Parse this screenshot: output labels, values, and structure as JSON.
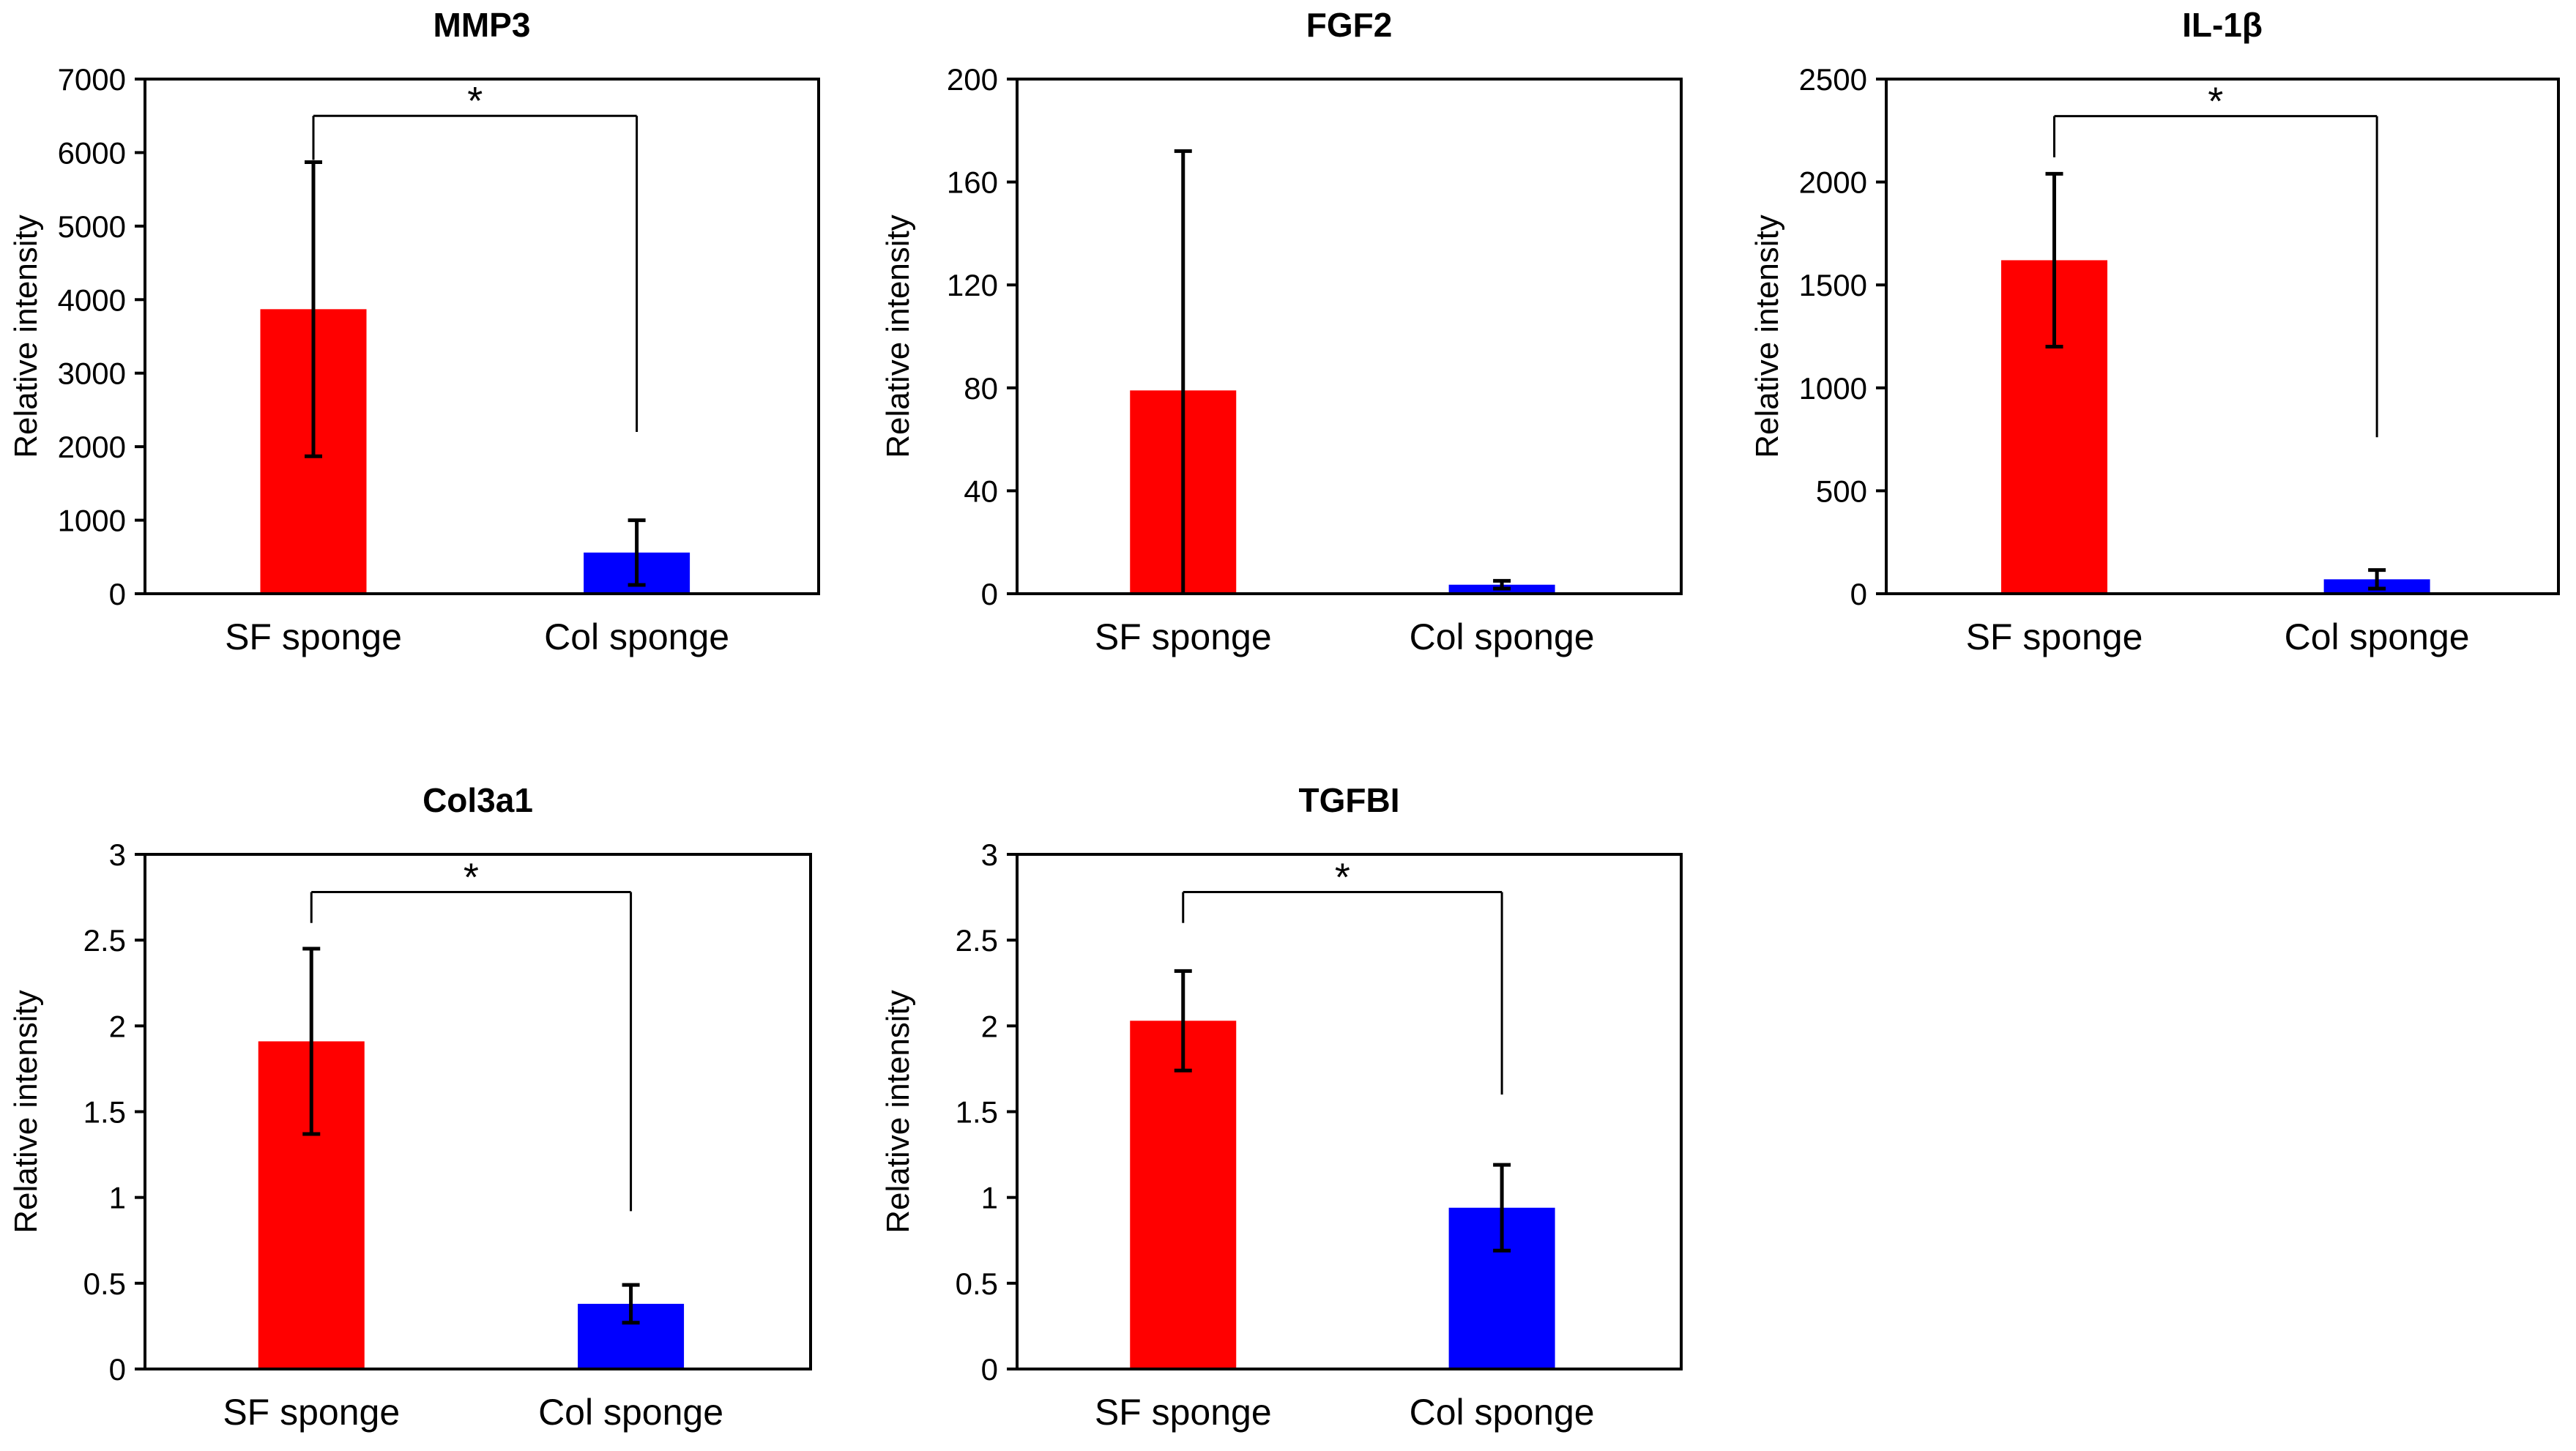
{
  "chart_data": [
    {
      "type": "bar",
      "title": "MMP3",
      "categories": [
        "SF sponge",
        "Col sponge"
      ],
      "values": [
        3870,
        560
      ],
      "errors": [
        2000,
        440
      ],
      "ylabel": "Relative intensity",
      "xlabel": "",
      "ylim": [
        0,
        7000
      ],
      "yticks": [
        0,
        1000,
        2000,
        3000,
        4000,
        5000,
        6000,
        7000
      ],
      "ytick_labels": [
        "0",
        "1000",
        "2000",
        "3000",
        "4000",
        "5000",
        "6000",
        "7000"
      ],
      "colors": [
        "#ff0000",
        "#0000ff"
      ],
      "significance": {
        "label": "*",
        "bracket_value": 6500,
        "left_drop_value": 5900,
        "right_drop_value": 2200
      }
    },
    {
      "type": "bar",
      "title": "FGF2",
      "categories": [
        "SF sponge",
        "Col sponge"
      ],
      "values": [
        79,
        3.5
      ],
      "errors": [
        93,
        1.5
      ],
      "ylabel": "Relative intensity",
      "xlabel": "",
      "ylim": [
        0,
        200
      ],
      "yticks": [
        0,
        40,
        80,
        120,
        160,
        200
      ],
      "ytick_labels": [
        "0",
        "40",
        "80",
        "120",
        "160",
        "200"
      ],
      "colors": [
        "#ff0000",
        "#0000ff"
      ],
      "significance": null
    },
    {
      "type": "bar",
      "title": "IL-1β",
      "categories": [
        "SF sponge",
        "Col sponge"
      ],
      "values": [
        1620,
        70
      ],
      "errors": [
        420,
        45
      ],
      "ylabel": "Relative intensity",
      "xlabel": "",
      "ylim": [
        0,
        2500
      ],
      "yticks": [
        0,
        500,
        1000,
        1500,
        2000,
        2500
      ],
      "ytick_labels": [
        "0",
        "500",
        "1000",
        "1500",
        "2000",
        "2500"
      ],
      "colors": [
        "#ff0000",
        "#0000ff"
      ],
      "significance": {
        "label": "*",
        "bracket_value": 2320,
        "left_drop_value": 2120,
        "right_drop_value": 760
      }
    },
    {
      "type": "bar",
      "title": "Col3a1",
      "categories": [
        "SF sponge",
        "Col sponge"
      ],
      "values": [
        1.91,
        0.38
      ],
      "errors": [
        0.54,
        0.11
      ],
      "ylabel": "Relative intensity",
      "xlabel": "",
      "ylim": [
        0,
        3
      ],
      "yticks": [
        0,
        0.5,
        1,
        1.5,
        2,
        2.5,
        3
      ],
      "ytick_labels": [
        "0",
        "0.5",
        "1",
        "1.5",
        "2",
        "2.5",
        "3"
      ],
      "colors": [
        "#ff0000",
        "#0000ff"
      ],
      "significance": {
        "label": "*",
        "bracket_value": 2.78,
        "left_drop_value": 2.6,
        "right_drop_value": 0.92
      }
    },
    {
      "type": "bar",
      "title": "TGFBI",
      "categories": [
        "SF sponge",
        "Col sponge"
      ],
      "values": [
        2.03,
        0.94
      ],
      "errors": [
        0.29,
        0.25
      ],
      "ylabel": "Relative intensity",
      "xlabel": "",
      "ylim": [
        0,
        3
      ],
      "yticks": [
        0,
        0.5,
        1,
        1.5,
        2,
        2.5,
        3
      ],
      "ytick_labels": [
        "0",
        "0.5",
        "1",
        "1.5",
        "2",
        "2.5",
        "3"
      ],
      "colors": [
        "#ff0000",
        "#0000ff"
      ],
      "significance": {
        "label": "*",
        "bracket_value": 2.78,
        "left_drop_value": 2.6,
        "right_drop_value": 1.6
      }
    }
  ]
}
